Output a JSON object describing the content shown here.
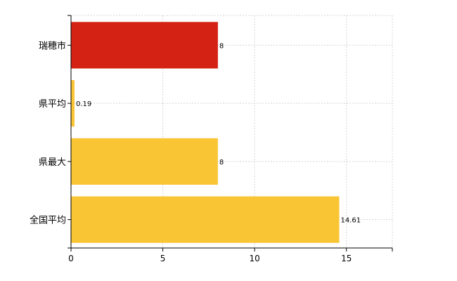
{
  "chart_data": {
    "type": "bar",
    "orientation": "horizontal",
    "categories": [
      "瑞穂市",
      "県平均",
      "県最大",
      "全国平均"
    ],
    "values": [
      8,
      0.19,
      8,
      14.61
    ],
    "data_labels": [
      "8",
      "0.19",
      "8",
      "14.61"
    ],
    "bar_colors": [
      "#d42214",
      "#f9c535",
      "#f9c535",
      "#f9c535"
    ],
    "x_ticks": [
      0,
      5,
      10,
      15
    ],
    "x_tick_labels": [
      "0",
      "5",
      "10",
      "15"
    ],
    "xlim": [
      0,
      17.5
    ],
    "title": "",
    "xlabel": "",
    "ylabel": "",
    "grid": true,
    "legend": "none"
  }
}
